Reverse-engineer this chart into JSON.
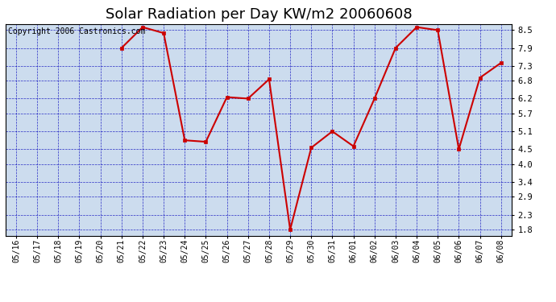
{
  "title": "Solar Radiation per Day KW/m2 20060608",
  "copyright_text": "Copyright 2006 Castronics.com",
  "dates": [
    "05/16",
    "05/17",
    "05/18",
    "05/19",
    "05/20",
    "05/21",
    "05/22",
    "05/23",
    "05/24",
    "05/25",
    "05/26",
    "05/27",
    "05/28",
    "05/29",
    "05/30",
    "05/31",
    "06/01",
    "06/02",
    "06/03",
    "06/04",
    "06/05",
    "06/06",
    "06/07",
    "06/08"
  ],
  "values": [
    null,
    null,
    null,
    null,
    null,
    7.9,
    8.6,
    8.4,
    4.8,
    4.75,
    6.25,
    6.2,
    6.85,
    1.8,
    4.55,
    5.1,
    4.6,
    6.2,
    7.9,
    8.6,
    8.5,
    4.5,
    6.9,
    7.4
  ],
  "yticks": [
    1.8,
    2.3,
    2.9,
    3.4,
    4.0,
    4.5,
    5.1,
    5.7,
    6.2,
    6.8,
    7.3,
    7.9,
    8.5
  ],
  "ylim": [
    1.6,
    8.7
  ],
  "line_color": "#cc0000",
  "marker_color": "#cc0000",
  "bg_color": "#ccdcee",
  "fig_bg_color": "#ffffff",
  "grid_color": "#0000bb",
  "title_fontsize": 13,
  "copyright_fontsize": 7,
  "tick_fontsize": 7,
  "ytick_fontsize": 7.5
}
